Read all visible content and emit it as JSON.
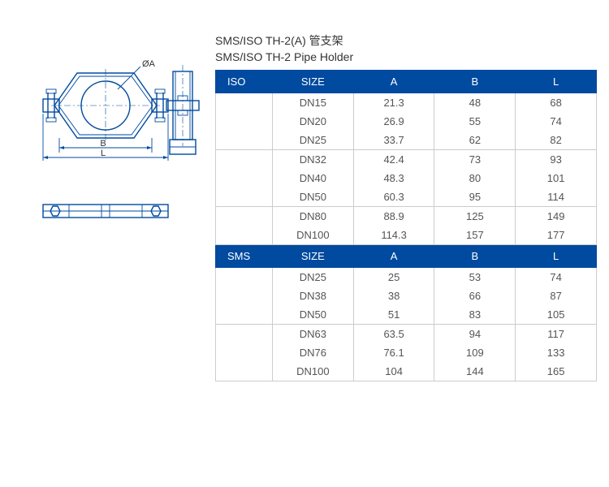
{
  "titles": {
    "cn": "SMS/ISO TH-2(A) 管支架",
    "en": "SMS/ISO TH-2 Pipe Holder"
  },
  "diagram": {
    "label_A": "ØA",
    "label_B": "B",
    "label_L": "L"
  },
  "table_iso": {
    "headers": {
      "std": "ISO",
      "size": "SIZE",
      "a": "A",
      "b": "B",
      "l": "L"
    },
    "rows": [
      {
        "size": "DN15",
        "a": "21.3",
        "b": "48",
        "l": "68"
      },
      {
        "size": "DN20",
        "a": "26.9",
        "b": "55",
        "l": "74"
      },
      {
        "size": "DN25",
        "a": "33.7",
        "b": "62",
        "l": "82",
        "divider": true
      },
      {
        "size": "DN32",
        "a": "42.4",
        "b": "73",
        "l": "93"
      },
      {
        "size": "DN40",
        "a": "48.3",
        "b": "80",
        "l": "101"
      },
      {
        "size": "DN50",
        "a": "60.3",
        "b": "95",
        "l": "114",
        "divider": true
      },
      {
        "size": "DN80",
        "a": "88.9",
        "b": "125",
        "l": "149"
      },
      {
        "size": "DN100",
        "a": "114.3",
        "b": "157",
        "l": "177"
      }
    ]
  },
  "table_sms": {
    "headers": {
      "std": "SMS",
      "size": "SIZE",
      "a": "A",
      "b": "B",
      "l": "L"
    },
    "rows": [
      {
        "size": "DN25",
        "a": "25",
        "b": "53",
        "l": "74"
      },
      {
        "size": "DN38",
        "a": "38",
        "b": "66",
        "l": "87"
      },
      {
        "size": "DN50",
        "a": "51",
        "b": "83",
        "l": "105",
        "divider": true
      },
      {
        "size": "DN63",
        "a": "63.5",
        "b": "94",
        "l": "117"
      },
      {
        "size": "DN76",
        "a": "76.1",
        "b": "109",
        "l": "133"
      },
      {
        "size": "DN100",
        "a": "104",
        "b": "144",
        "l": "165"
      }
    ]
  },
  "colors": {
    "header_bg": "#004a9f",
    "header_text": "#ffffff",
    "body_text": "#555555",
    "border": "#cccccc",
    "diagram_stroke": "#004a9f"
  }
}
